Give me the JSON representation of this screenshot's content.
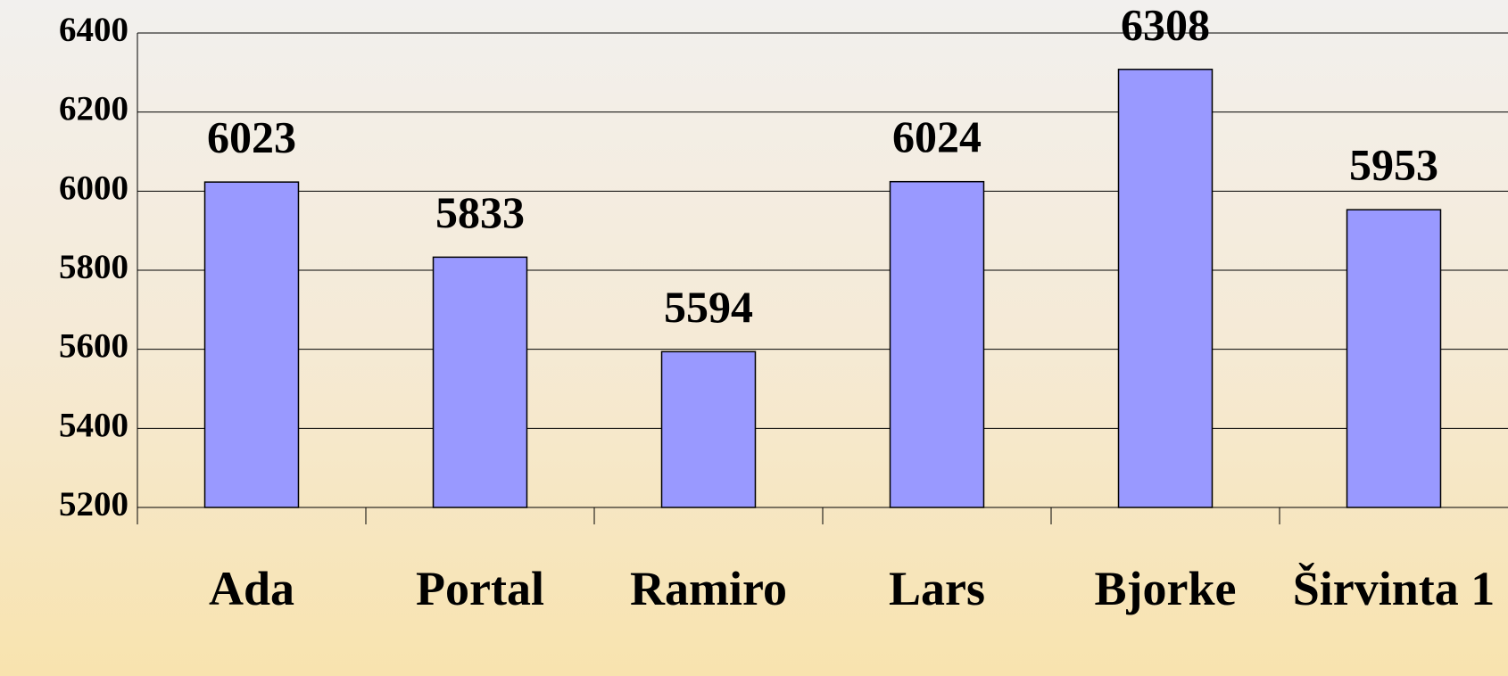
{
  "chart_data": {
    "type": "bar",
    "categories": [
      "Ada",
      "Portal",
      "Ramiro",
      "Lars",
      "Bjorke",
      "Širvinta 1"
    ],
    "values": [
      6023,
      5833,
      5594,
      6024,
      6308,
      5953
    ],
    "color": "#9999ff",
    "ylim": [
      5200,
      6400
    ],
    "yticks": [
      5200,
      5400,
      5600,
      5800,
      6000,
      6200,
      6400
    ],
    "grid": true
  }
}
